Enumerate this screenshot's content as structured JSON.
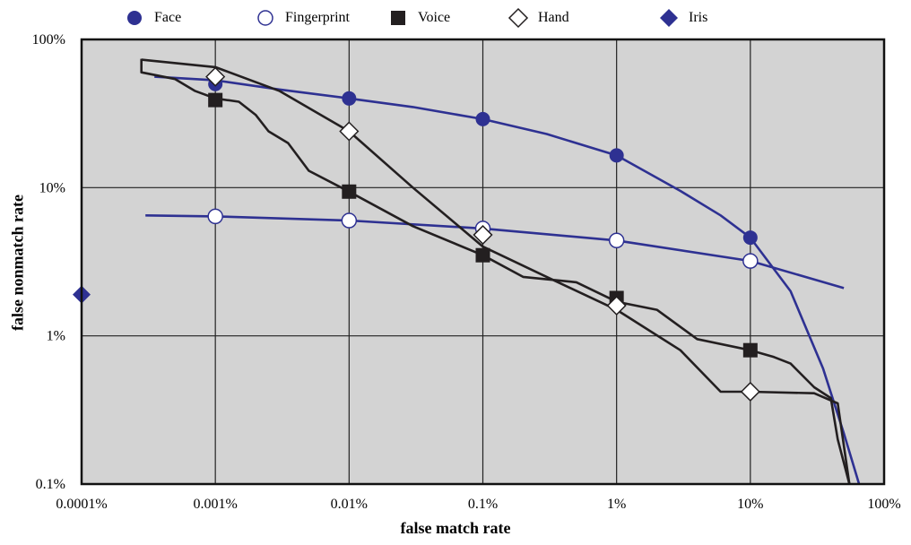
{
  "chart_data": {
    "type": "line",
    "title": "",
    "xlabel": "false match rate",
    "ylabel": "false nonmatch rate",
    "x_scale": "log",
    "y_scale": "log",
    "xlim": [
      1e-06,
      1.0
    ],
    "ylim": [
      0.001,
      1.0
    ],
    "x_ticks": [
      {
        "value": 1e-06,
        "label": "0.0001%"
      },
      {
        "value": 1e-05,
        "label": "0.001%"
      },
      {
        "value": 0.0001,
        "label": "0.01%"
      },
      {
        "value": 0.001,
        "label": "0.1%"
      },
      {
        "value": 0.01,
        "label": "1%"
      },
      {
        "value": 0.1,
        "label": "10%"
      },
      {
        "value": 1.0,
        "label": "100%"
      }
    ],
    "y_ticks": [
      {
        "value": 0.001,
        "label": "0.1%"
      },
      {
        "value": 0.01,
        "label": "1%"
      },
      {
        "value": 0.1,
        "label": "10%"
      },
      {
        "value": 1.0,
        "label": "100%"
      }
    ],
    "grid": true,
    "plot_background": "#d3d3d3",
    "legend_position": "top",
    "series": [
      {
        "name": "Face",
        "marker": "filled-circle",
        "color": "#2e3192",
        "curve": [
          [
            3.5e-06,
            0.56
          ],
          [
            1e-05,
            0.53
          ],
          [
            3e-05,
            0.46
          ],
          [
            0.0001,
            0.4
          ],
          [
            0.0003,
            0.35
          ],
          [
            0.001,
            0.29
          ],
          [
            0.003,
            0.23
          ],
          [
            0.01,
            0.165
          ],
          [
            0.03,
            0.095
          ],
          [
            0.06,
            0.065
          ],
          [
            0.1,
            0.046
          ],
          [
            0.2,
            0.02
          ],
          [
            0.35,
            0.006
          ],
          [
            0.5,
            0.0022
          ],
          [
            0.65,
            0.001
          ]
        ],
        "points": [
          [
            1e-05,
            0.5
          ],
          [
            0.0001,
            0.4
          ],
          [
            0.001,
            0.29
          ],
          [
            0.01,
            0.165
          ],
          [
            0.1,
            0.046
          ]
        ]
      },
      {
        "name": "Fingerprint",
        "marker": "open-circle",
        "color": "#2e3192",
        "curve": [
          [
            3e-06,
            0.065
          ],
          [
            1e-05,
            0.064
          ],
          [
            0.0001,
            0.06
          ],
          [
            0.001,
            0.053
          ],
          [
            0.01,
            0.044
          ],
          [
            0.1,
            0.032
          ],
          [
            0.3,
            0.024
          ],
          [
            0.5,
            0.021
          ]
        ],
        "points": [
          [
            1e-05,
            0.064
          ],
          [
            0.0001,
            0.06
          ],
          [
            0.001,
            0.053
          ],
          [
            0.01,
            0.044
          ],
          [
            0.1,
            0.032
          ]
        ]
      },
      {
        "name": "Voice",
        "marker": "filled-square",
        "color": "#231f20",
        "curve": [
          [
            2.8e-06,
            0.74
          ],
          [
            2.8e-06,
            0.6
          ],
          [
            5e-06,
            0.54
          ],
          [
            7e-06,
            0.45
          ],
          [
            1e-05,
            0.4
          ],
          [
            1.5e-05,
            0.38
          ],
          [
            2e-05,
            0.31
          ],
          [
            2.5e-05,
            0.24
          ],
          [
            3.5e-05,
            0.2
          ],
          [
            5e-05,
            0.13
          ],
          [
            0.0001,
            0.094
          ],
          [
            0.0003,
            0.055
          ],
          [
            0.001,
            0.035
          ],
          [
            0.002,
            0.025
          ],
          [
            0.005,
            0.023
          ],
          [
            0.01,
            0.017
          ],
          [
            0.02,
            0.015
          ],
          [
            0.04,
            0.0095
          ],
          [
            0.1,
            0.008
          ],
          [
            0.15,
            0.0072
          ],
          [
            0.2,
            0.0065
          ],
          [
            0.3,
            0.0045
          ],
          [
            0.4,
            0.0038
          ],
          [
            0.45,
            0.002
          ],
          [
            0.55,
            0.001
          ]
        ],
        "points": [
          [
            1e-05,
            0.39
          ],
          [
            0.0001,
            0.094
          ],
          [
            0.001,
            0.035
          ],
          [
            0.01,
            0.018
          ],
          [
            0.1,
            0.008
          ]
        ]
      },
      {
        "name": "Hand",
        "marker": "open-diamond",
        "color": "#231f20",
        "curve": [
          [
            2.8e-06,
            0.73
          ],
          [
            1e-05,
            0.65
          ],
          [
            3e-05,
            0.45
          ],
          [
            0.0001,
            0.24
          ],
          [
            0.0003,
            0.1
          ],
          [
            0.001,
            0.04
          ],
          [
            0.003,
            0.025
          ],
          [
            0.01,
            0.015
          ],
          [
            0.03,
            0.008
          ],
          [
            0.06,
            0.0042
          ],
          [
            0.1,
            0.0042
          ],
          [
            0.3,
            0.0041
          ],
          [
            0.45,
            0.0035
          ],
          [
            0.55,
            0.001
          ]
        ],
        "points": [
          [
            1e-05,
            0.56
          ],
          [
            0.0001,
            0.24
          ],
          [
            0.001,
            0.048
          ],
          [
            0.01,
            0.016
          ],
          [
            0.1,
            0.0042
          ]
        ]
      },
      {
        "name": "Iris",
        "marker": "filled-diamond",
        "color": "#2e3192",
        "curve": [],
        "points": [
          [
            1e-06,
            0.019
          ]
        ]
      }
    ]
  }
}
